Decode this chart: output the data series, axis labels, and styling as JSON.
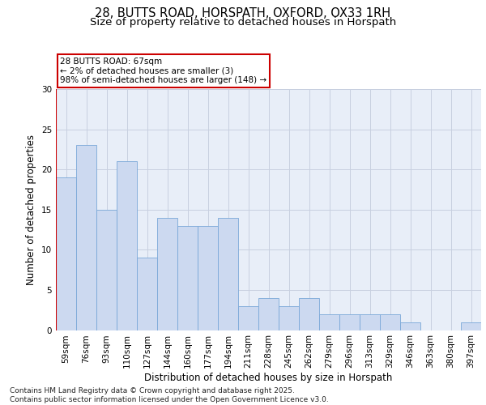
{
  "title1": "28, BUTTS ROAD, HORSPATH, OXFORD, OX33 1RH",
  "title2": "Size of property relative to detached houses in Horspath",
  "xlabel": "Distribution of detached houses by size in Horspath",
  "ylabel": "Number of detached properties",
  "categories": [
    "59sqm",
    "76sqm",
    "93sqm",
    "110sqm",
    "127sqm",
    "144sqm",
    "160sqm",
    "177sqm",
    "194sqm",
    "211sqm",
    "228sqm",
    "245sqm",
    "262sqm",
    "279sqm",
    "296sqm",
    "313sqm",
    "329sqm",
    "346sqm",
    "363sqm",
    "380sqm",
    "397sqm"
  ],
  "values": [
    19,
    23,
    15,
    21,
    9,
    14,
    13,
    13,
    14,
    3,
    4,
    3,
    4,
    2,
    2,
    2,
    2,
    1,
    0,
    0,
    1
  ],
  "bar_color": "#ccd9f0",
  "bar_edge_color": "#7aa8d8",
  "annotation_box_text": "28 BUTTS ROAD: 67sqm\n← 2% of detached houses are smaller (3)\n98% of semi-detached houses are larger (148) →",
  "annotation_box_color": "#ffffff",
  "annotation_box_edge_color": "#cc0000",
  "ylim": [
    0,
    30
  ],
  "yticks": [
    0,
    5,
    10,
    15,
    20,
    25,
    30
  ],
  "grid_color": "#c8d0e0",
  "background_color": "#e8eef8",
  "footer_text": "Contains HM Land Registry data © Crown copyright and database right 2025.\nContains public sector information licensed under the Open Government Licence v3.0.",
  "title1_fontsize": 10.5,
  "title2_fontsize": 9.5,
  "xlabel_fontsize": 8.5,
  "ylabel_fontsize": 8.5,
  "tick_fontsize": 7.5,
  "footer_fontsize": 6.5,
  "annotation_fontsize": 7.5
}
